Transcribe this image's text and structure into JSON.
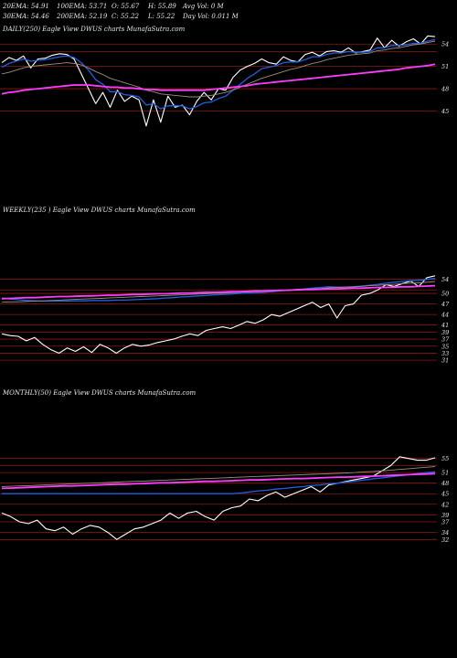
{
  "header": {
    "ema20": "20EMA: 54.91",
    "ema30": "30EMA: 54.46",
    "ema100": "100EMA: 53.71",
    "ema200": "200EMA: 52.19",
    "open": "O: 55.67",
    "close": "C: 55.22",
    "high": "H: 55.89",
    "low": "L: 55.22",
    "avg_vol": "Avg Vol: 0  M",
    "day_vol": "Day Vol: 0.011 M"
  },
  "colors": {
    "background": "#000000",
    "price": "#ffffff",
    "short_ma": "#1f5fe0",
    "long_ma": "#ff3cff",
    "mid_ma": "#9a8f7a",
    "hline": "#8b1a14",
    "label": "#e8e8e8"
  },
  "chart_data": [
    {
      "type": "line",
      "title": "DAILY(250) Eagle  View  DWUS charts MunafaSutra.com",
      "y_ticks": [
        "54",
        "51",
        "48",
        "45"
      ],
      "y_tick_values": [
        54,
        51,
        48,
        45
      ],
      "ylim": [
        41.5,
        55.5
      ],
      "hlines": [
        54,
        53,
        51,
        48,
        45
      ],
      "grid": false,
      "series": [
        {
          "role": "price",
          "values": [
            51.5,
            52.2,
            51.8,
            52.4,
            50.8,
            52.0,
            52.1,
            52.5,
            52.7,
            52.6,
            52.0,
            50.0,
            48.0,
            46.0,
            47.5,
            45.5,
            47.8,
            46.3,
            47.0,
            46.5,
            43.0,
            46.5,
            43.5,
            47.0,
            45.5,
            45.8,
            44.5,
            46.3,
            47.5,
            46.5,
            48.0,
            47.8,
            49.5,
            50.5,
            51.0,
            51.4,
            52.0,
            51.5,
            51.3,
            52.3,
            51.8,
            51.6,
            52.6,
            52.9,
            52.4,
            53.0,
            53.1,
            52.9,
            53.5,
            52.8,
            53.0,
            53.2,
            54.8,
            53.5,
            54.5,
            53.7,
            54.3,
            54.7,
            54.0,
            55.1,
            55.0
          ]
        },
        {
          "role": "short_ma",
          "values": [
            50.9,
            51.4,
            51.7,
            52.0,
            51.7,
            51.8,
            51.9,
            52.1,
            52.3,
            52.4,
            52.2,
            51.5,
            50.5,
            49.2,
            48.6,
            47.6,
            47.6,
            47.2,
            47.1,
            46.9,
            45.8,
            46.0,
            45.3,
            45.7,
            45.7,
            45.7,
            45.3,
            45.6,
            46.1,
            46.2,
            46.7,
            47.0,
            47.8,
            48.6,
            49.4,
            50.0,
            50.7,
            50.9,
            51.1,
            51.5,
            51.6,
            51.6,
            51.9,
            52.3,
            52.3,
            52.6,
            52.8,
            52.8,
            53.0,
            52.9,
            52.9,
            53.0,
            53.5,
            53.5,
            53.8,
            53.8,
            53.9,
            54.1,
            54.1,
            54.4,
            54.6
          ]
        },
        {
          "role": "mid_ma",
          "values": [
            50.0,
            50.2,
            50.5,
            50.8,
            51.0,
            51.1,
            51.2,
            51.3,
            51.4,
            51.5,
            51.4,
            51.2,
            50.8,
            50.3,
            49.9,
            49.4,
            49.1,
            48.8,
            48.5,
            48.2,
            47.8,
            47.6,
            47.3,
            47.2,
            47.1,
            47.0,
            46.9,
            46.9,
            47.0,
            47.1,
            47.3,
            47.5,
            47.8,
            48.2,
            48.6,
            49.0,
            49.4,
            49.7,
            50.0,
            50.3,
            50.6,
            50.8,
            51.1,
            51.4,
            51.6,
            51.9,
            52.1,
            52.3,
            52.5,
            52.6,
            52.7,
            52.8,
            53.1,
            53.2,
            53.4,
            53.5,
            53.7,
            53.9,
            54.0,
            54.2,
            54.4
          ]
        },
        {
          "role": "long_ma",
          "values": [
            47.3,
            47.5,
            47.6,
            47.8,
            47.9,
            48.0,
            48.1,
            48.2,
            48.3,
            48.4,
            48.5,
            48.5,
            48.5,
            48.4,
            48.3,
            48.2,
            48.2,
            48.1,
            48.1,
            48.0,
            47.9,
            47.9,
            47.8,
            47.8,
            47.8,
            47.8,
            47.8,
            47.8,
            47.8,
            47.9,
            48.0,
            48.1,
            48.2,
            48.3,
            48.4,
            48.6,
            48.7,
            48.8,
            48.9,
            49.0,
            49.1,
            49.2,
            49.3,
            49.4,
            49.5,
            49.6,
            49.7,
            49.8,
            49.9,
            50.0,
            50.1,
            50.2,
            50.3,
            50.4,
            50.5,
            50.6,
            50.8,
            50.9,
            51.0,
            51.1,
            51.3
          ]
        }
      ]
    },
    {
      "type": "line",
      "title": "WEEKLY(235                ) Eagle  View  DWUS charts MunafaSutra.com",
      "y_ticks": [
        "54",
        "50",
        "47",
        "44",
        "41",
        "39",
        "37",
        "35",
        "33",
        "31"
      ],
      "y_tick_values": [
        54,
        50,
        47,
        44,
        41,
        39,
        37,
        35,
        33,
        31
      ],
      "ylim": [
        30,
        56
      ],
      "hlines": [
        54,
        51,
        50,
        47,
        44,
        41,
        39,
        37,
        35,
        33,
        31
      ],
      "grid": false,
      "series": [
        {
          "role": "price",
          "values": [
            38.5,
            38.0,
            37.8,
            36.5,
            37.5,
            35.5,
            34.0,
            33.0,
            34.5,
            33.5,
            34.8,
            33.2,
            35.5,
            34.5,
            33.0,
            34.5,
            35.5,
            35.0,
            35.3,
            36.0,
            36.5,
            37.0,
            37.8,
            38.5,
            38.0,
            39.5,
            40.0,
            40.5,
            40.0,
            41.0,
            42.0,
            41.5,
            42.5,
            44.0,
            43.5,
            44.5,
            45.5,
            46.5,
            47.5,
            46.0,
            47.0,
            43.0,
            46.5,
            47.0,
            49.5,
            50.0,
            51.0,
            52.5,
            52.0,
            52.8,
            53.5,
            52.0,
            54.5,
            55.0
          ]
        },
        {
          "role": "short_ma",
          "values": [
            48.7,
            48.4,
            48.2,
            48.0,
            47.9,
            47.8,
            47.8,
            47.8,
            47.8,
            47.9,
            47.9,
            48.0,
            48.0,
            48.0,
            48.1,
            48.1,
            48.2,
            48.3,
            48.4,
            48.5,
            48.7,
            48.8,
            49.0,
            49.1,
            49.3,
            49.4,
            49.6,
            49.7,
            49.8,
            50.0,
            50.1,
            50.2,
            50.3,
            50.5,
            50.7,
            50.9,
            51.1,
            51.3,
            51.5,
            51.7,
            51.9,
            51.8,
            51.8,
            51.9,
            52.1,
            52.3,
            52.6,
            52.9,
            53.2,
            53.4,
            53.6,
            53.7,
            54.0,
            54.3
          ]
        },
        {
          "role": "mid_ma",
          "values": [
            47.5,
            47.6,
            47.6,
            47.7,
            47.8,
            47.9,
            48.0,
            48.1,
            48.2,
            48.3,
            48.4,
            48.5,
            48.6,
            48.7,
            48.8,
            48.9,
            49.0,
            49.1,
            49.2,
            49.3,
            49.4,
            49.5,
            49.6,
            49.7,
            49.8,
            49.9,
            50.0,
            50.1,
            50.2,
            50.3,
            50.4,
            50.5,
            50.6,
            50.7,
            50.8,
            51.0,
            51.1,
            51.2,
            51.3,
            51.4,
            51.6,
            51.7,
            51.8,
            51.9,
            52.0,
            52.2,
            52.3,
            52.5,
            52.6,
            52.8,
            52.9,
            53.0,
            53.2,
            53.4
          ]
        },
        {
          "role": "long_ma",
          "values": [
            48.5,
            48.6,
            48.7,
            48.8,
            48.8,
            48.9,
            49.0,
            49.1,
            49.1,
            49.2,
            49.3,
            49.3,
            49.4,
            49.5,
            49.5,
            49.6,
            49.7,
            49.7,
            49.8,
            49.9,
            49.9,
            50.0,
            50.1,
            50.1,
            50.2,
            50.3,
            50.3,
            50.4,
            50.5,
            50.5,
            50.6,
            50.7,
            50.7,
            50.8,
            50.9,
            50.9,
            51.0,
            51.1,
            51.1,
            51.2,
            51.3,
            51.3,
            51.4,
            51.5,
            51.5,
            51.6,
            51.7,
            51.7,
            51.8,
            51.9,
            51.9,
            52.0,
            52.1,
            52.2
          ]
        }
      ]
    },
    {
      "type": "line",
      "title": "MONTHLY(50) Eagle  View  DWUS charts MunafaSutra.com",
      "y_ticks": [
        "55",
        "51",
        "48",
        "45",
        "42",
        "39",
        "37",
        "34",
        "32"
      ],
      "y_tick_values": [
        55,
        51,
        48,
        45,
        42,
        39,
        37,
        34,
        32
      ],
      "ylim": [
        30,
        57
      ],
      "hlines": [
        55,
        53,
        51,
        48,
        45,
        42,
        39,
        37,
        34,
        32
      ],
      "grid": false,
      "series": [
        {
          "role": "price",
          "values": [
            39.5,
            38.5,
            37.0,
            36.5,
            37.5,
            35.0,
            34.5,
            35.5,
            33.5,
            35.0,
            36.0,
            35.5,
            34.0,
            32.0,
            33.5,
            35.0,
            35.5,
            36.5,
            37.5,
            39.5,
            38.0,
            39.5,
            40.0,
            38.5,
            37.5,
            40.0,
            41.0,
            41.5,
            43.5,
            43.0,
            44.5,
            45.5,
            44.0,
            45.0,
            46.0,
            47.0,
            45.5,
            47.5,
            48.0,
            48.5,
            49.0,
            49.5,
            50.0,
            51.5,
            53.0,
            55.5,
            55.0,
            54.5,
            54.5,
            55.2
          ]
        },
        {
          "role": "short_ma",
          "values": [
            45.0,
            45.0,
            45.0,
            45.0,
            45.0,
            45.0,
            45.0,
            45.0,
            45.0,
            45.0,
            45.0,
            45.0,
            45.0,
            45.0,
            45.0,
            45.0,
            45.0,
            45.0,
            45.0,
            45.0,
            45.0,
            45.0,
            45.0,
            45.0,
            45.0,
            45.0,
            45.0,
            45.2,
            45.5,
            45.8,
            46.0,
            46.3,
            46.5,
            46.8,
            47.0,
            47.3,
            47.5,
            47.8,
            48.0,
            48.3,
            48.6,
            48.9,
            49.2,
            49.5,
            49.8,
            50.1,
            50.4,
            50.7,
            51.0,
            51.2
          ]
        },
        {
          "role": "mid_ma",
          "values": [
            47.0,
            47.1,
            47.2,
            47.3,
            47.4,
            47.5,
            47.6,
            47.7,
            47.8,
            47.9,
            48.0,
            48.1,
            48.2,
            48.3,
            48.4,
            48.5,
            48.6,
            48.7,
            48.8,
            48.9,
            49.0,
            49.1,
            49.2,
            49.3,
            49.4,
            49.5,
            49.6,
            49.7,
            49.8,
            49.9,
            50.0,
            50.1,
            50.2,
            50.3,
            50.4,
            50.5,
            50.6,
            50.7,
            50.8,
            50.9,
            51.0,
            51.2,
            51.3,
            51.5,
            51.7,
            51.9,
            52.1,
            52.3,
            52.5,
            52.7
          ]
        },
        {
          "role": "long_ma",
          "values": [
            46.5,
            46.6,
            46.7,
            46.8,
            46.9,
            47.0,
            47.1,
            47.2,
            47.2,
            47.3,
            47.4,
            47.5,
            47.6,
            47.7,
            47.7,
            47.8,
            47.9,
            48.0,
            48.1,
            48.1,
            48.2,
            48.3,
            48.4,
            48.5,
            48.5,
            48.6,
            48.7,
            48.8,
            48.9,
            48.9,
            49.0,
            49.1,
            49.2,
            49.3,
            49.3,
            49.4,
            49.5,
            49.6,
            49.7,
            49.7,
            49.8,
            49.9,
            50.0,
            50.1,
            50.2,
            50.3,
            50.4,
            50.5,
            50.6,
            50.7
          ]
        }
      ]
    }
  ]
}
